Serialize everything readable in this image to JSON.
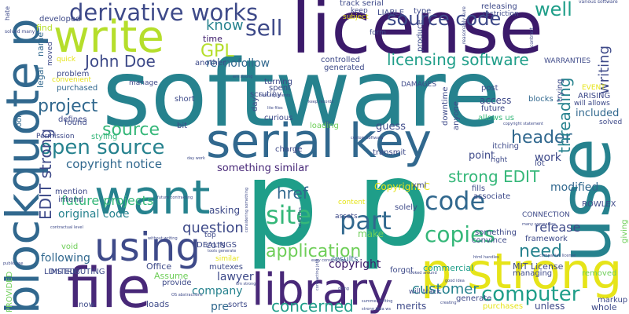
{
  "colors": {
    "navy": "#3b1a6a",
    "purple": "#482878",
    "indigo": "#3e4a89",
    "blue": "#31688e",
    "teal": "#26828e",
    "sea": "#1f9e89",
    "green": "#35b779",
    "lime": "#6ece58",
    "yellowgreen": "#b5de2b",
    "yellow": "#e6e419"
  },
  "words": {
    "software": "software",
    "license": "license",
    "use": "use",
    "p_p": "p p",
    "blockquote_p": "blockquote p",
    "serial_key": "serial key",
    "file": "file",
    "library": "library",
    "p_strong": "p strong",
    "want": "want",
    "write": "write",
    "using": "using",
    "derivative_works": "derivative works",
    "source_code": "source code",
    "open_source": "open source",
    "source": "source",
    "part": "part",
    "site": "site",
    "code": "code",
    "copies": "copies",
    "computer": "computer",
    "application": "application",
    "customer": "customer",
    "concerned": "concerned",
    "question": "question",
    "project": "project",
    "future_projects": "future projects",
    "john_doe": "John Doe",
    "sell": "sell",
    "know": "know",
    "well": "well",
    "gpl": "GPL",
    "header": "header",
    "threading": "threading",
    "writing": "writing",
    "strong_edit": "strong EDIT",
    "edit_strong": "EDIT strong",
    "href": "href",
    "need": "need",
    "release": "release",
    "licensing_software": "licensing software",
    "copyright_notice": "copyright notice",
    "something_similar": "something similar",
    "rel_nofollow": "rel nofollow",
    "original_code": "original code",
    "following": "following",
    "copyright": "copyright",
    "company": "company",
    "lawyer": "lawyer",
    "modified": "modified",
    "included": "included",
    "mit_license": "MIT License",
    "point": "point",
    "guess": "guess",
    "copyright_c": "Copyright C",
    "make": "make",
    "time": "time",
    "name": "name",
    "legal": "legal",
    "find": "find",
    "developed": "developed",
    "moved": "moved",
    "problem": "problem",
    "purchased": "purchased",
    "defines": "defines",
    "tool": "tool",
    "found": "found",
    "styling": "styling",
    "short": "short",
    "bit": "bit",
    "manage": "manage",
    "another": "another",
    "curious": "curious",
    "spent": "spent",
    "turning": "turning",
    "scrutiny": "scrutiny",
    "day": "day",
    "loading": "loading",
    "charge": "charge",
    "transmit": "transmit",
    "asking": "asking",
    "intend": "intend",
    "mention": "mention",
    "void": "void",
    "assume": "Assume",
    "office": "Office",
    "limited": "LIMITED",
    "distributing": "DISTRIBUTING",
    "provided": "PROVIDED",
    "dealings": "DEALINGS",
    "mutexes": "mutexes",
    "results": "results",
    "forgot": "forgot",
    "commercial": "commercial",
    "managing": "managing",
    "removed": "removed",
    "whole": "whole",
    "unless": "unless",
    "markup": "markup",
    "merits": "merits",
    "generate": "generate",
    "purchases": "purchases",
    "pre": "pre",
    "sorts": "sorts",
    "loads": "loads",
    "now": "now",
    "provide": "provide",
    "convince": "convince",
    "something": "something",
    "framework": "framework",
    "rowlex": "ROWLEX",
    "connection": "CONNECTION",
    "work": "work",
    "lot": "lot",
    "right": "right",
    "itching": "itching",
    "fills": "fills",
    "associate": "associate",
    "access": "access",
    "future": "future",
    "post": "post",
    "blocks": "blocks",
    "solved": "solved",
    "allows_us": "allows us",
    "arising": "ARISING",
    "will_allows": "will allows",
    "event": "EVENT",
    "trying": "trying",
    "giving": "giving",
    "track_serial": "track serial",
    "keep": "keep",
    "liable": "LIABLE",
    "type": "type",
    "releasing": "releasing",
    "restriction": "restriction",
    "subject": "subject",
    "form": "form",
    "produce": "produce",
    "controlled": "controlled",
    "generated": "generated",
    "damages": "DAMAGES",
    "downtime": "downtime",
    "anyone": "anyone",
    "warranties": "WARRANTIES",
    "solely": "solely",
    "xml": "xml",
    "content": "content",
    "assets": "assets",
    "will_track": "will track",
    "similar": "similar",
    "cots": "COTS",
    "top": "top",
    "convenient": "convenient",
    "quick": "quick",
    "permission": "Permission",
    "hate": "hate",
    "solved_many": "solved many",
    "various_software": "various software",
    "contract": "contract",
    "reasonably": "reasonably sure",
    "em_strong": "em strong",
    "best_arguments": "best arguments",
    "keep_records": "keep records",
    "copyright_statement": "copyright statement",
    "custom_software": "custom software",
    "html_handles": "html handles",
    "many_companies": "many companies",
    "good_idea": "good idea",
    "summer_writing": "summer writing",
    "easy_construction": "easy construction",
    "public_use": "public use",
    "without_writing": "without writing",
    "tools_generate": "tools generate",
    "future_contracting": "future contracting",
    "day_work": "day work",
    "contractual_level": "contractual level",
    "idea_ws": "idea ws",
    "strong_ws": "strong ws",
    "lite_files": "lite files",
    "utility_files": "utility files",
    "considering": "considering something",
    "contracting_jobs": "contracting jobs",
    "looked_around": "looked around",
    "companies_license": "companies license",
    "os_abstractions": "OS abstractions",
    "creating": "creating",
    "doing": "doing"
  }
}
